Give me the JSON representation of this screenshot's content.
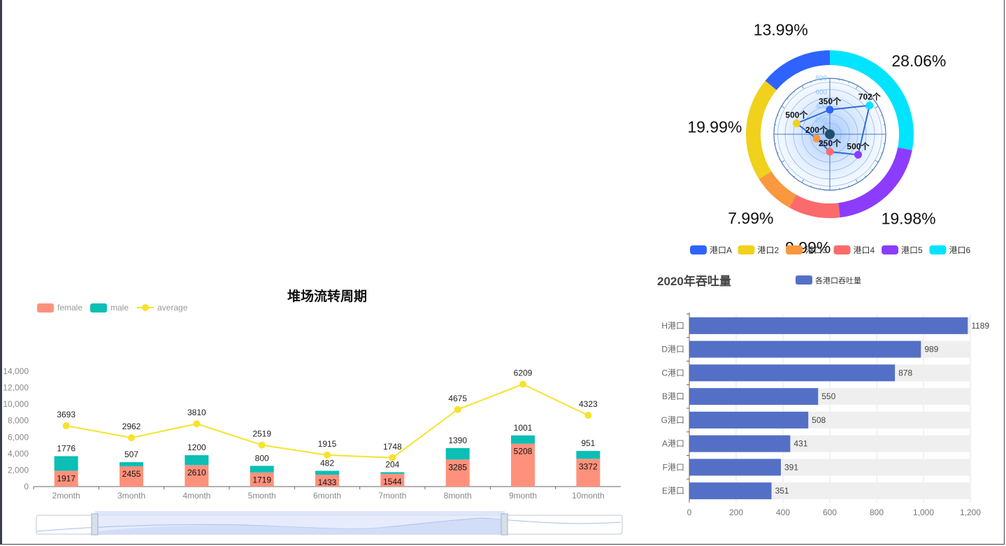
{
  "chart_data": [
    {
      "type": "pie",
      "slices": [
        {
          "name": "港口A",
          "label": "13.99%",
          "percent": 13.99,
          "color": "#2e63ff"
        },
        {
          "name": "港口2",
          "label": "19.99%",
          "percent": 19.99,
          "color": "#f0d11b"
        },
        {
          "name": "港口3",
          "label": "7.99%",
          "percent": 7.99,
          "color": "#f9983f"
        },
        {
          "name": "港口4",
          "label": "9.99%",
          "percent": 9.99,
          "color": "#fc6b6b"
        },
        {
          "name": "港口5",
          "label": "19.98%",
          "percent": 19.98,
          "color": "#8c3cff"
        },
        {
          "name": "港口6",
          "label": "28.06%",
          "percent": 28.06,
          "color": "#00e4ff"
        }
      ],
      "radar": {
        "ticks": [
          "200",
          "400",
          "600",
          "800"
        ],
        "max": 800,
        "points": [
          {
            "label": "350个",
            "value": 350,
            "angle": 90,
            "color": "#2e63ff"
          },
          {
            "label": "500个",
            "value": 500,
            "angle": 162,
            "color": "#f0d11b"
          },
          {
            "label": "200个",
            "value": 200,
            "angle": 198,
            "color": "#f9983f"
          },
          {
            "label": "250个",
            "value": 250,
            "angle": 270,
            "color": "#fc6b6b"
          },
          {
            "label": "500个",
            "value": 500,
            "angle": 324,
            "color": "#8c3cff"
          },
          {
            "label": "702个",
            "value": 702,
            "angle": 36,
            "color": "#00e4ff"
          }
        ]
      },
      "legend_placement": "bottom"
    },
    {
      "type": "bar",
      "title": "堆场流转周期",
      "legend": [
        "female",
        "male",
        "average"
      ],
      "categories": [
        "2month",
        "3month",
        "4month",
        "5month",
        "6month",
        "7month",
        "8month",
        "9month",
        "10month"
      ],
      "series": [
        {
          "name": "female",
          "values": [
            1917,
            2455,
            2610,
            1719,
            1433,
            1544,
            3285,
            5208,
            3372
          ],
          "color": "#ff917c"
        },
        {
          "name": "male",
          "values": [
            1776,
            507,
            1200,
            800,
            482,
            204,
            1390,
            1001,
            951
          ],
          "color": "#0bbfb5"
        },
        {
          "name": "average",
          "values": [
            3693,
            2962,
            3810,
            2519,
            1915,
            1748,
            4675,
            6209,
            4323
          ],
          "color": "#f7e22d",
          "kind": "line"
        }
      ],
      "yticks": [
        "0",
        "2,000",
        "4,000",
        "6,000",
        "8,000",
        "10,000",
        "12,000",
        "14,000"
      ],
      "ylim": [
        0,
        14000
      ],
      "grid": false
    },
    {
      "type": "bar",
      "orientation": "horizontal",
      "title": "2020年吞吐量",
      "legend": [
        "各港口吞吐量"
      ],
      "categories": [
        "H港口",
        "D港口",
        "C港口",
        "B港口",
        "G港口",
        "A港口",
        "F港口",
        "E港口"
      ],
      "values": [
        1189,
        989,
        878,
        550,
        508,
        431,
        391,
        351
      ],
      "color": "#5470c6",
      "xticks": [
        "0",
        "200",
        "400",
        "600",
        "800",
        "1,000",
        "1,200"
      ],
      "xlim": [
        0,
        1200
      ]
    }
  ]
}
